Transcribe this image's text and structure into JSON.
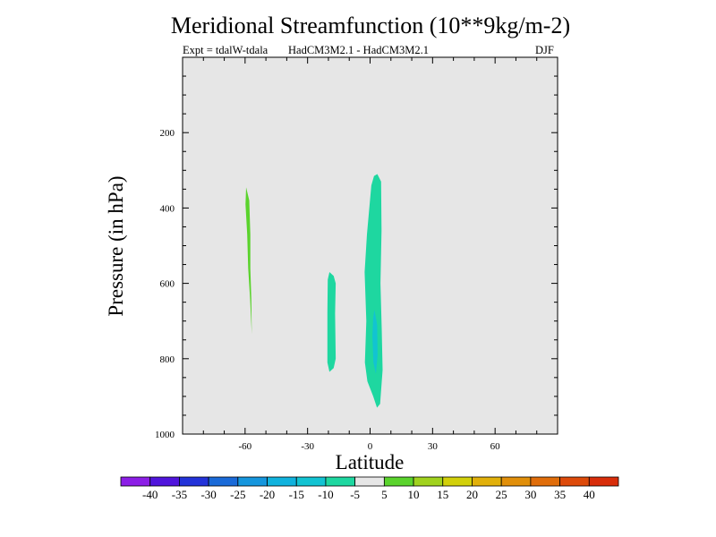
{
  "chart_data": {
    "type": "contour",
    "title": "Meridional Streamfunction (10**9kg/m-2)",
    "subtitle_left": "Expt = tdalW-tdala",
    "subtitle_center": "HadCM3M2.1 - HadCM3M2.1",
    "subtitle_right": "DJF",
    "xlabel": "Latitude",
    "ylabel": "Pressure (in hPa)",
    "xlim": [
      -90,
      90
    ],
    "ylim": [
      1000,
      0
    ],
    "x_ticks": [
      -60,
      -30,
      0,
      30,
      60
    ],
    "x_tick_labels": [
      "-60",
      "-30",
      "0",
      "30",
      "60"
    ],
    "y_ticks": [
      200,
      400,
      600,
      800,
      1000
    ],
    "y_tick_labels": [
      "200",
      "400",
      "600",
      "800",
      "1000"
    ],
    "background_color": "#e6e6e6",
    "regions": [
      {
        "name": "green-cell-60S",
        "level": "5 to 10",
        "color": "#5ad32c",
        "points": [
          [
            -59.5,
            345
          ],
          [
            -58.0,
            380
          ],
          [
            -57.5,
            470
          ],
          [
            -57.5,
            560
          ],
          [
            -57.0,
            640
          ],
          [
            -56.8,
            735
          ],
          [
            -57.6,
            640
          ],
          [
            -58.5,
            560
          ],
          [
            -59.0,
            470
          ],
          [
            -59.8,
            390
          ]
        ]
      },
      {
        "name": "teal-cell-20S",
        "level": "-10 to -5",
        "color": "#1ed7a0",
        "points": [
          [
            -19.5,
            570
          ],
          [
            -17.5,
            580
          ],
          [
            -16.5,
            600
          ],
          [
            -16.8,
            680
          ],
          [
            -16.5,
            800
          ],
          [
            -17.5,
            825
          ],
          [
            -19.5,
            835
          ],
          [
            -20.5,
            810
          ],
          [
            -20.5,
            680
          ],
          [
            -20.3,
            590
          ]
        ]
      },
      {
        "name": "teal-cell-equator",
        "level": "-10 to -5",
        "color": "#1ed7a0",
        "points": [
          [
            3.5,
            310
          ],
          [
            5.3,
            330
          ],
          [
            5.5,
            460
          ],
          [
            5.0,
            600
          ],
          [
            5.6,
            720
          ],
          [
            6.0,
            830
          ],
          [
            4.8,
            920
          ],
          [
            3.3,
            930
          ],
          [
            1.5,
            900
          ],
          [
            -1.3,
            860
          ],
          [
            -2.5,
            810
          ],
          [
            -1.8,
            700
          ],
          [
            -2.6,
            570
          ],
          [
            -1.5,
            470
          ],
          [
            0.6,
            340
          ],
          [
            1.9,
            315
          ]
        ]
      },
      {
        "name": "cyan-core-equator",
        "level": "-15 to -10",
        "color": "#12c3d2",
        "points": [
          [
            2.1,
            670
          ],
          [
            3.4,
            710
          ],
          [
            3.6,
            790
          ],
          [
            2.8,
            840
          ],
          [
            1.6,
            810
          ],
          [
            1.1,
            740
          ],
          [
            1.5,
            690
          ]
        ]
      }
    ],
    "colorbar": {
      "tick_labels": [
        "-40",
        "-35",
        "-30",
        "-25",
        "-20",
        "-15",
        "-10",
        "-5",
        "5",
        "10",
        "15",
        "20",
        "25",
        "30",
        "35",
        "40"
      ],
      "colors": [
        "#8c1ee6",
        "#5014dc",
        "#2333d9",
        "#1a6ad8",
        "#1596dd",
        "#10b2dd",
        "#12c3d2",
        "#1ed7a0",
        "#e6e6e6",
        "#5ad32c",
        "#a0d21e",
        "#d2d00a",
        "#e1b00a",
        "#e18f0a",
        "#e06d0a",
        "#dd4a0a",
        "#d82d0a"
      ]
    }
  }
}
